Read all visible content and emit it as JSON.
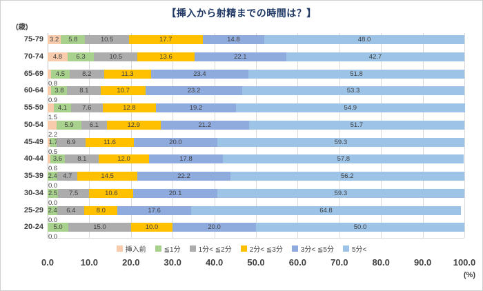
{
  "chart_data": {
    "type": "bar",
    "stacked": true,
    "orientation": "horizontal",
    "title": "【挿入から射精までの時間は？】",
    "yaxis_unit_label": "(歳)",
    "xaxis_unit_label": "(%)",
    "categories": [
      "75-79",
      "70-74",
      "65-69",
      "60-64",
      "55-59",
      "50-54",
      "45-49",
      "40-44",
      "35-39",
      "30-34",
      "25-29",
      "20-24"
    ],
    "series": [
      {
        "name": "挿入前",
        "color": "#F8CBAD",
        "values": [
          3.2,
          4.8,
          0.8,
          0.9,
          1.5,
          2.2,
          0.5,
          0.6,
          0.0,
          0.0,
          0.0,
          0.0
        ]
      },
      {
        "name": "≦1分",
        "color": "#A9D18E",
        "values": [
          5.8,
          6.3,
          4.5,
          3.8,
          4.1,
          5.9,
          1.7,
          3.6,
          2.4,
          2.5,
          2.4,
          5.0
        ]
      },
      {
        "name": "1分< ≦2分",
        "color": "#ACACAC",
        "values": [
          10.5,
          10.5,
          8.2,
          8.1,
          7.6,
          6.1,
          6.9,
          8.1,
          4.7,
          7.5,
          6.4,
          15.0
        ]
      },
      {
        "name": "2分< ≦3分",
        "color": "#FFC000",
        "values": [
          17.7,
          13.6,
          11.3,
          10.7,
          12.8,
          12.9,
          11.6,
          12.0,
          14.5,
          10.6,
          8.0,
          10.0
        ]
      },
      {
        "name": "3分< ≦5分",
        "color": "#8FAADC",
        "values": [
          14.8,
          22.1,
          23.4,
          23.2,
          19.2,
          21.2,
          20.0,
          17.8,
          22.2,
          20.1,
          17.6,
          20.0
        ]
      },
      {
        "name": "5分<",
        "color": "#9DC3E6",
        "values": [
          48.0,
          42.7,
          51.8,
          53.3,
          54.9,
          51.7,
          59.3,
          57.8,
          56.2,
          59.3,
          64.8,
          50.0
        ]
      }
    ],
    "xlim": [
      0,
      100
    ],
    "xticks": [
      "0.0",
      "10.0",
      "20.0",
      "30.0",
      "40.0",
      "50.0",
      "60.0",
      "70.0",
      "80.0",
      "90.0",
      "100.0"
    ],
    "gridlines": true,
    "legend_position": "bottom"
  }
}
